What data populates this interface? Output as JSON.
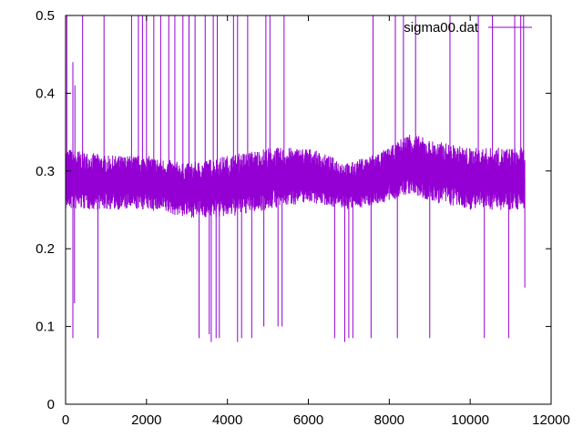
{
  "chart_data": {
    "type": "line",
    "title": "",
    "xlabel": "",
    "ylabel": "",
    "xlim": [
      0,
      12000
    ],
    "ylim": [
      0,
      0.5
    ],
    "x_ticks": [
      0,
      2000,
      4000,
      6000,
      8000,
      10000,
      12000
    ],
    "y_ticks": [
      0,
      0.1,
      0.2,
      0.3,
      0.4,
      0.5
    ],
    "x_tick_labels": [
      "0",
      "2000",
      "4000",
      "6000",
      "8000",
      "10000",
      "12000"
    ],
    "y_tick_labels": [
      "0",
      "0.1",
      "0.2",
      "0.3",
      "0.4",
      "0.5"
    ],
    "grid": false,
    "legend_position": "top-right",
    "series": [
      {
        "name": "sigma00.dat",
        "color": "#9400d3",
        "x_range": [
          0,
          11350
        ],
        "envelope": {
          "x": [
            0,
            1000,
            2000,
            3000,
            4000,
            5000,
            6000,
            7000,
            8000,
            8500,
            9000,
            10000,
            11000,
            11350
          ],
          "upper": [
            0.33,
            0.32,
            0.32,
            0.31,
            0.32,
            0.33,
            0.33,
            0.31,
            0.33,
            0.35,
            0.34,
            0.33,
            0.33,
            0.33
          ],
          "lower": [
            0.25,
            0.25,
            0.25,
            0.24,
            0.24,
            0.25,
            0.26,
            0.25,
            0.26,
            0.27,
            0.26,
            0.25,
            0.25,
            0.25
          ]
        },
        "spikes_up": [
          {
            "x": 30,
            "y": 0.5
          },
          {
            "x": 180,
            "y": 0.44
          },
          {
            "x": 230,
            "y": 0.41
          },
          {
            "x": 420,
            "y": 0.5
          },
          {
            "x": 950,
            "y": 0.5
          },
          {
            "x": 1630,
            "y": 0.5
          },
          {
            "x": 1800,
            "y": 0.5
          },
          {
            "x": 1900,
            "y": 0.5
          },
          {
            "x": 2000,
            "y": 0.5
          },
          {
            "x": 2180,
            "y": 0.5
          },
          {
            "x": 2350,
            "y": 0.5
          },
          {
            "x": 2550,
            "y": 0.5
          },
          {
            "x": 2700,
            "y": 0.5
          },
          {
            "x": 2900,
            "y": 0.5
          },
          {
            "x": 3050,
            "y": 0.5
          },
          {
            "x": 3200,
            "y": 0.5
          },
          {
            "x": 3450,
            "y": 0.5
          },
          {
            "x": 3650,
            "y": 0.5
          },
          {
            "x": 3750,
            "y": 0.5
          },
          {
            "x": 4150,
            "y": 0.5
          },
          {
            "x": 4250,
            "y": 0.5
          },
          {
            "x": 4500,
            "y": 0.5
          },
          {
            "x": 4950,
            "y": 0.5
          },
          {
            "x": 5050,
            "y": 0.5
          },
          {
            "x": 5400,
            "y": 0.5
          },
          {
            "x": 7600,
            "y": 0.5
          },
          {
            "x": 8150,
            "y": 0.5
          },
          {
            "x": 8350,
            "y": 0.5
          },
          {
            "x": 8650,
            "y": 0.5
          },
          {
            "x": 9500,
            "y": 0.5
          },
          {
            "x": 10200,
            "y": 0.5
          },
          {
            "x": 10550,
            "y": 0.5
          },
          {
            "x": 11100,
            "y": 0.5
          },
          {
            "x": 11250,
            "y": 0.5
          },
          {
            "x": 11320,
            "y": 0.5
          }
        ],
        "spikes_down": [
          {
            "x": 180,
            "y": 0.085
          },
          {
            "x": 220,
            "y": 0.13
          },
          {
            "x": 800,
            "y": 0.085
          },
          {
            "x": 3300,
            "y": 0.085
          },
          {
            "x": 3550,
            "y": 0.09
          },
          {
            "x": 3600,
            "y": 0.08
          },
          {
            "x": 3720,
            "y": 0.085
          },
          {
            "x": 3800,
            "y": 0.085
          },
          {
            "x": 4250,
            "y": 0.08
          },
          {
            "x": 4350,
            "y": 0.085
          },
          {
            "x": 4600,
            "y": 0.085
          },
          {
            "x": 4900,
            "y": 0.1
          },
          {
            "x": 5250,
            "y": 0.1
          },
          {
            "x": 5350,
            "y": 0.1
          },
          {
            "x": 6650,
            "y": 0.085
          },
          {
            "x": 6900,
            "y": 0.08
          },
          {
            "x": 7000,
            "y": 0.085
          },
          {
            "x": 7100,
            "y": 0.085
          },
          {
            "x": 7550,
            "y": 0.085
          },
          {
            "x": 8200,
            "y": 0.085
          },
          {
            "x": 9000,
            "y": 0.085
          },
          {
            "x": 10350,
            "y": 0.085
          },
          {
            "x": 10950,
            "y": 0.085
          },
          {
            "x": 11350,
            "y": 0.15
          }
        ]
      }
    ]
  }
}
